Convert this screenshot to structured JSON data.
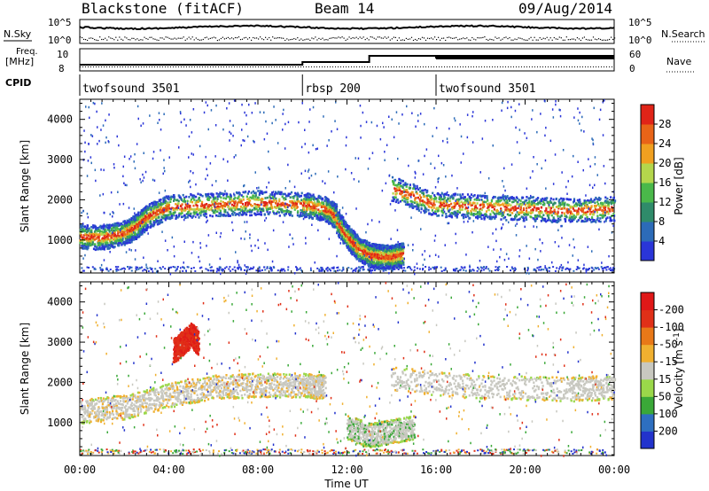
{
  "header": {
    "station": "Blackstone (fitACF)",
    "beam": "Beam 14",
    "date": "09/Aug/2014"
  },
  "noise_panel": {
    "left_label": "N.Sky",
    "right_label": "N.Search",
    "left_ticks": [
      "10^5",
      "10^0"
    ],
    "right_ticks": [
      "10^5",
      "10^0"
    ]
  },
  "freq_panel": {
    "left_label_line1": "Freq.",
    "left_label_line2": "[MHz]",
    "right_label": "Nave",
    "left_ticks": [
      "10",
      "8"
    ],
    "right_ticks": [
      "60",
      "0"
    ]
  },
  "cpid": {
    "label": "CPID",
    "segments": [
      {
        "name": "twofsound 3501",
        "start_hour": 0,
        "end_hour": 10
      },
      {
        "name": "rbsp 200",
        "start_hour": 10,
        "end_hour": 16
      },
      {
        "name": "twofsound 3501",
        "start_hour": 16,
        "end_hour": 24
      }
    ]
  },
  "x_axis": {
    "label": "Time UT",
    "ticks": [
      "00:00",
      "04:00",
      "08:00",
      "12:00",
      "16:00",
      "20:00",
      "00:00"
    ]
  },
  "chart_data": [
    {
      "type": "heatmap",
      "panel": "power",
      "ylabel": "Slant Range [km]",
      "ylim": [
        180,
        4500
      ],
      "yticks": [
        "1000",
        "2000",
        "3000",
        "4000"
      ],
      "xlim_hours": [
        0,
        24
      ],
      "colorbar": {
        "label": "Power [dB]",
        "ticks": [
          "4",
          "8",
          "12",
          "16",
          "20",
          "24",
          "28"
        ],
        "colors": [
          "#2a35d8",
          "#2c6bb8",
          "#2f8b6a",
          "#4ab84a",
          "#b4d64c",
          "#f0a020",
          "#e86418",
          "#e02418"
        ]
      },
      "series": [
        {
          "x": [
            0.0,
            1.0,
            2.0,
            2.5,
            3.0,
            4.0,
            6.0,
            8.0,
            10.0,
            11.0,
            11.5
          ],
          "y": [
            1100,
            1080,
            1200,
            1350,
            1600,
            1850,
            1900,
            1950,
            1900,
            1800,
            1600
          ]
        },
        {
          "x": [
            11.5,
            12.0,
            12.5,
            13.0,
            13.5,
            14.0,
            14.5
          ],
          "y": [
            1500,
            1100,
            800,
            650,
            600,
            600,
            650
          ]
        },
        {
          "x": [
            14.0,
            16.0,
            18.0,
            20.0,
            22.0,
            24.0
          ],
          "y": [
            2300,
            1900,
            1850,
            1800,
            1750,
            1800
          ]
        }
      ]
    },
    {
      "type": "heatmap",
      "panel": "velocity",
      "ylabel": "Slant Range [km]",
      "ylim": [
        180,
        4500
      ],
      "yticks": [
        "1000",
        "2000",
        "3000",
        "4000"
      ],
      "xlim_hours": [
        0,
        24
      ],
      "colorbar": {
        "label": "Velocity [m s^-1]",
        "ticks": [
          "200",
          "100",
          "50",
          "15",
          "-15",
          "-50",
          "-100",
          "-200"
        ],
        "colors": [
          "#2233cc",
          "#2e6fc0",
          "#3aa838",
          "#9ad84a",
          "#c8c8c0",
          "#f0b030",
          "#e87818",
          "#e03018",
          "#e01818"
        ]
      },
      "series": [
        {
          "x": [
            0.0,
            2.0,
            4.0,
            6.0,
            8.0,
            10.0,
            11.0
          ],
          "y": [
            1300,
            1400,
            1700,
            1900,
            1950,
            1950,
            1900
          ]
        },
        {
          "x": [
            4.2,
            4.6,
            5.0,
            5.3
          ],
          "y": [
            2800,
            3000,
            3200,
            3000
          ]
        },
        {
          "x": [
            12.0,
            13.0,
            14.0,
            15.0
          ],
          "y": [
            900,
            700,
            800,
            900
          ]
        },
        {
          "x": [
            14.0,
            18.0,
            22.0,
            24.0
          ],
          "y": [
            2100,
            1900,
            1850,
            1900
          ]
        }
      ]
    }
  ]
}
